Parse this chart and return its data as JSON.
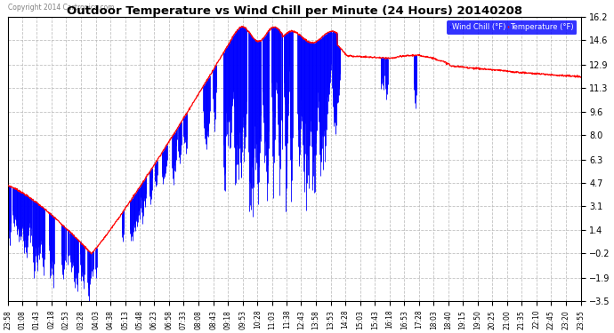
{
  "title": "Outdoor Temperature vs Wind Chill per Minute (24 Hours) 20140208",
  "copyright": "Copyright 2014 Cartronics.com",
  "ylabel_right_vals": [
    16.2,
    14.6,
    12.9,
    11.3,
    9.6,
    8.0,
    6.3,
    4.7,
    3.1,
    1.4,
    -0.2,
    -1.9,
    -3.5
  ],
  "ylim": [
    -3.5,
    16.2
  ],
  "legend_labels": [
    "Wind Chill (°F)",
    "Temperature (°F)"
  ],
  "legend_colors": [
    "blue",
    "red"
  ],
  "bg_color": "#ffffff",
  "grid_color": "#bbbbbb",
  "temp_color": "red",
  "windchill_color": "blue",
  "x_tick_labels": [
    "23:58",
    "01:08",
    "01:43",
    "02:18",
    "02:53",
    "03:28",
    "04:03",
    "04:38",
    "05:13",
    "05:48",
    "06:23",
    "06:58",
    "07:33",
    "08:08",
    "08:43",
    "09:18",
    "09:53",
    "10:28",
    "11:03",
    "11:38",
    "12:43",
    "13:58",
    "13:53",
    "14:28",
    "15:03",
    "15:43",
    "16:18",
    "16:53",
    "17:28",
    "18:03",
    "18:40",
    "19:15",
    "19:50",
    "20:25",
    "21:00",
    "21:35",
    "22:10",
    "22:45",
    "23:20",
    "23:55"
  ],
  "n_points": 1440
}
